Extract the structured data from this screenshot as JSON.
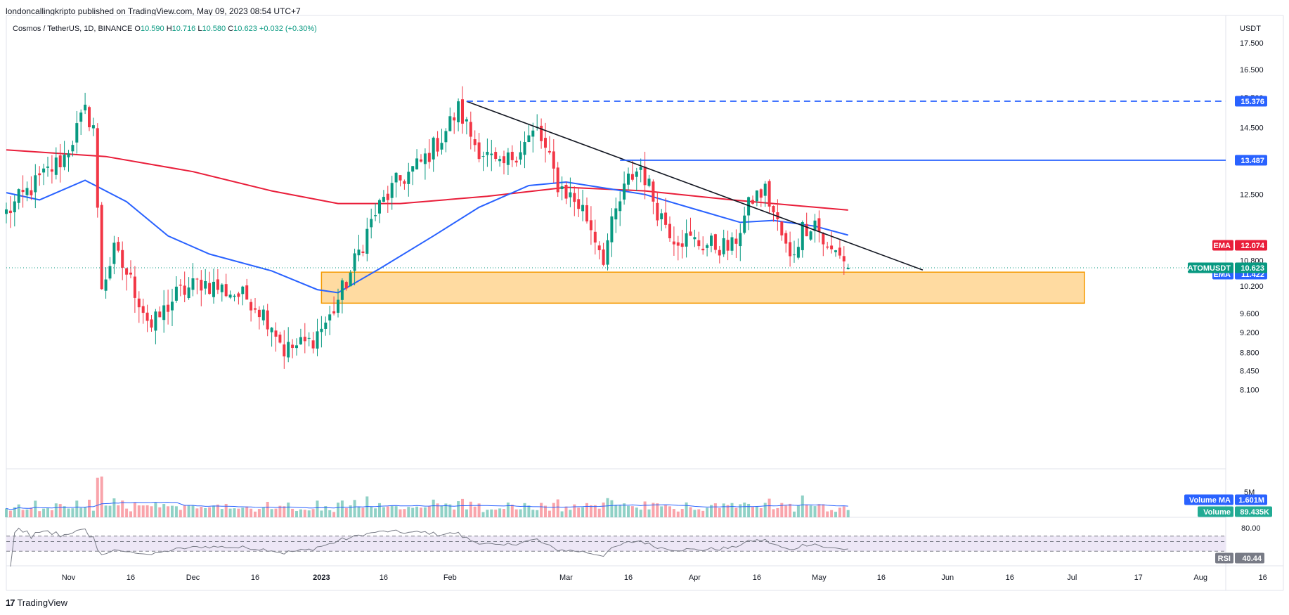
{
  "header": {
    "published": "londoncallingkripto published on TradingView.com, May 09, 2023 08:54 UTC+7"
  },
  "legend": {
    "symbol": "Cosmos / TetherUS, 1D, BINANCE",
    "o_label": "O",
    "o": "10.590",
    "h_label": "H",
    "h": "10.716",
    "l_label": "L",
    "l": "10.580",
    "c_label": "C",
    "c": "10.623",
    "change": "+0.032 (+0.30%)"
  },
  "footer": {
    "brand": "TradingView",
    "logo": "17"
  },
  "colors": {
    "up": "#089981",
    "down": "#f23645",
    "ema_fast": "#2962ff",
    "ema_slow": "#e91e3a",
    "zone_fill": "#ffd591",
    "zone_border": "#f59a00",
    "level": "#2962ff",
    "rsi_band": "#ede7f6",
    "rsi_line": "#787b86",
    "vol_ma": "#2962ff"
  },
  "chart_data": [
    {
      "type": "candlestick",
      "title": "Cosmos / TetherUS, 1D, BINANCE",
      "ylabel": "USDT",
      "y_scale": "log",
      "ylim": [
        7.9,
        18.2
      ],
      "y_ticks": [
        "17.500",
        "16.500",
        "15.500",
        "14.500",
        "12.500",
        "10.800",
        "10.200",
        "9.600",
        "9.200",
        "8.800",
        "8.450",
        "8.100"
      ],
      "x_ticks": [
        "Nov",
        "16",
        "Dec",
        "16",
        "2023",
        "16",
        "Feb",
        "Mar",
        "16",
        "Apr",
        "16",
        "May",
        "16",
        "Jun",
        "16",
        "Jul",
        "17",
        "Aug",
        "16"
      ],
      "x_tick_dates": [
        "2022-11-01",
        "2022-11-16",
        "2022-12-01",
        "2022-12-16",
        "2023-01-01",
        "2023-01-16",
        "2023-02-01",
        "2023-03-01",
        "2023-03-16",
        "2023-04-01",
        "2023-04-16",
        "2023-05-01",
        "2023-05-16",
        "2023-06-01",
        "2023-06-16",
        "2023-07-01",
        "2023-07-17",
        "2023-08-01",
        "2023-08-16"
      ],
      "date_range": [
        "2022-10-17",
        "2023-05-08"
      ],
      "close_anchors": [
        [
          "2022-10-17",
          12.0
        ],
        [
          "2022-10-24",
          12.8
        ],
        [
          "2022-10-31",
          13.6
        ],
        [
          "2022-11-05",
          15.0
        ],
        [
          "2022-11-07",
          14.6
        ],
        [
          "2022-11-08",
          12.0
        ],
        [
          "2022-11-09",
          10.2
        ],
        [
          "2022-11-12",
          11.0
        ],
        [
          "2022-11-15",
          10.5
        ],
        [
          "2022-11-21",
          9.3
        ],
        [
          "2022-11-27",
          10.0
        ],
        [
          "2022-12-03",
          10.3
        ],
        [
          "2022-12-15",
          9.9
        ],
        [
          "2022-12-20",
          9.4
        ],
        [
          "2022-12-23",
          8.85
        ],
        [
          "2022-12-29",
          9.0
        ],
        [
          "2023-01-03",
          9.5
        ],
        [
          "2023-01-08",
          10.5
        ],
        [
          "2023-01-14",
          12.0
        ],
        [
          "2023-01-19",
          12.8
        ],
        [
          "2023-01-25",
          13.4
        ],
        [
          "2023-01-30",
          14.2
        ],
        [
          "2023-02-03",
          15.1
        ],
        [
          "2023-02-07",
          14.0
        ],
        [
          "2023-02-13",
          13.2
        ],
        [
          "2023-02-18",
          13.9
        ],
        [
          "2023-02-22",
          14.4
        ],
        [
          "2023-02-27",
          12.8
        ],
        [
          "2023-03-05",
          12.1
        ],
        [
          "2023-03-10",
          10.9
        ],
        [
          "2023-03-13",
          12.0
        ],
        [
          "2023-03-16",
          12.9
        ],
        [
          "2023-03-19",
          13.3
        ],
        [
          "2023-03-23",
          12.1
        ],
        [
          "2023-03-27",
          11.4
        ],
        [
          "2023-04-03",
          11.2
        ],
        [
          "2023-04-10",
          11.1
        ],
        [
          "2023-04-15",
          12.4
        ],
        [
          "2023-04-18",
          12.6
        ],
        [
          "2023-04-21",
          11.7
        ],
        [
          "2023-04-24",
          10.8
        ],
        [
          "2023-04-27",
          11.6
        ],
        [
          "2023-04-30",
          11.8
        ],
        [
          "2023-05-03",
          11.0
        ],
        [
          "2023-05-06",
          11.0
        ],
        [
          "2023-05-08",
          10.623
        ]
      ],
      "last": {
        "o": 10.59,
        "h": 10.716,
        "l": 10.58,
        "c": 10.623
      },
      "series": [
        {
          "name": "EMA",
          "value": "12.074",
          "color": "#e91e3a",
          "points": [
            [
              "2022-10-17",
              13.8
            ],
            [
              "2022-11-10",
              13.6
            ],
            [
              "2022-12-01",
              13.15
            ],
            [
              "2022-12-20",
              12.6
            ],
            [
              "2023-01-05",
              12.25
            ],
            [
              "2023-01-20",
              12.25
            ],
            [
              "2023-02-10",
              12.45
            ],
            [
              "2023-03-01",
              12.7
            ],
            [
              "2023-03-20",
              12.6
            ],
            [
              "2023-04-10",
              12.35
            ],
            [
              "2023-04-25",
              12.2
            ],
            [
              "2023-05-08",
              12.074
            ]
          ]
        },
        {
          "name": "EMA",
          "value": "11.422",
          "color": "#2962ff",
          "points": [
            [
              "2022-10-17",
              12.55
            ],
            [
              "2022-10-25",
              12.35
            ],
            [
              "2022-11-05",
              12.9
            ],
            [
              "2022-11-15",
              12.3
            ],
            [
              "2022-11-25",
              11.4
            ],
            [
              "2022-12-05",
              10.95
            ],
            [
              "2022-12-20",
              10.55
            ],
            [
              "2022-12-31",
              10.12
            ],
            [
              "2023-01-05",
              10.05
            ],
            [
              "2023-01-15",
              10.6
            ],
            [
              "2023-01-28",
              11.4
            ],
            [
              "2023-02-08",
              12.15
            ],
            [
              "2023-02-20",
              12.75
            ],
            [
              "2023-03-01",
              12.85
            ],
            [
              "2023-03-12",
              12.65
            ],
            [
              "2023-03-20",
              12.5
            ],
            [
              "2023-04-01",
              12.1
            ],
            [
              "2023-04-12",
              11.75
            ],
            [
              "2023-04-20",
              11.8
            ],
            [
              "2023-04-30",
              11.65
            ],
            [
              "2023-05-08",
              11.422
            ]
          ]
        },
        {
          "name": "ATOMUSDT",
          "value": "10.623"
        }
      ],
      "annotations": {
        "trendline": [
          [
            "2023-02-05",
            15.37
          ],
          [
            "2023-05-26",
            10.57
          ]
        ],
        "dashed_level": {
          "value": "15.376",
          "from": "2023-02-05"
        },
        "solid_level": {
          "value": "13.487",
          "from": "2023-03-14"
        },
        "support_zone": {
          "from": "2023-01-01",
          "to": "2023-07-04",
          "low": 9.82,
          "high": 10.52
        }
      }
    },
    {
      "type": "bar",
      "title": "Volume",
      "y_ticks": [
        "5M"
      ],
      "series": [
        {
          "name": "Volume MA",
          "value": "1.601M"
        },
        {
          "name": "Volume",
          "value": "89.435K"
        }
      ]
    },
    {
      "type": "line",
      "title": "RSI",
      "y_ticks": [
        "80.00"
      ],
      "levels": [
        70,
        50,
        30
      ],
      "series": [
        {
          "name": "RSI",
          "value": "40.44"
        }
      ]
    }
  ],
  "tags": {
    "axis_unit": "USDT",
    "dashed_level": "15.376",
    "solid_level": "13.487",
    "ema_slow_name": "EMA",
    "ema_slow_value": "12.074",
    "ema_fast_name": "EMA",
    "ema_fast_value": "11.422",
    "symbol_name": "ATOMUSDT",
    "symbol_value": "10.623",
    "vol_ma_name": "Volume MA",
    "vol_ma_value": "1.601M",
    "vol_name": "Volume",
    "vol_value": "89.435K",
    "vol_tick": "5M",
    "rsi_tick": "80.00",
    "rsi_name": "RSI",
    "rsi_value": "40.44"
  }
}
